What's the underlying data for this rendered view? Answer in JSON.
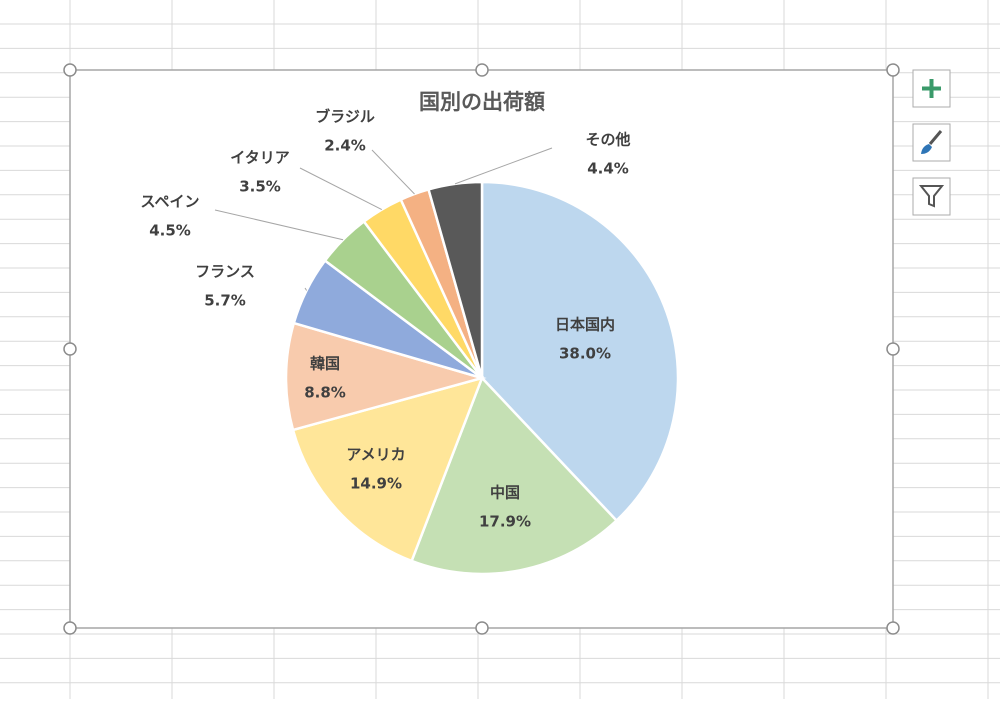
{
  "chart_data": {
    "type": "pie",
    "title": "国別の出荷額",
    "categories": [
      "日本国内",
      "中国",
      "アメリカ",
      "韓国",
      "フランス",
      "スペイン",
      "イタリア",
      "ブラジル",
      "その他"
    ],
    "values": [
      38.0,
      17.9,
      14.9,
      8.8,
      5.7,
      4.5,
      3.5,
      2.4,
      4.4
    ],
    "value_labels": [
      "38.0%",
      "17.9%",
      "14.9%",
      "8.8%",
      "5.7%",
      "4.5%",
      "3.5%",
      "2.4%",
      "4.4%"
    ],
    "colors": [
      "#bdd7ee",
      "#c5e0b4",
      "#ffe699",
      "#f8cbad",
      "#8faadc",
      "#a9d18e",
      "#ffd966",
      "#f4b183",
      "#595959"
    ]
  }
}
